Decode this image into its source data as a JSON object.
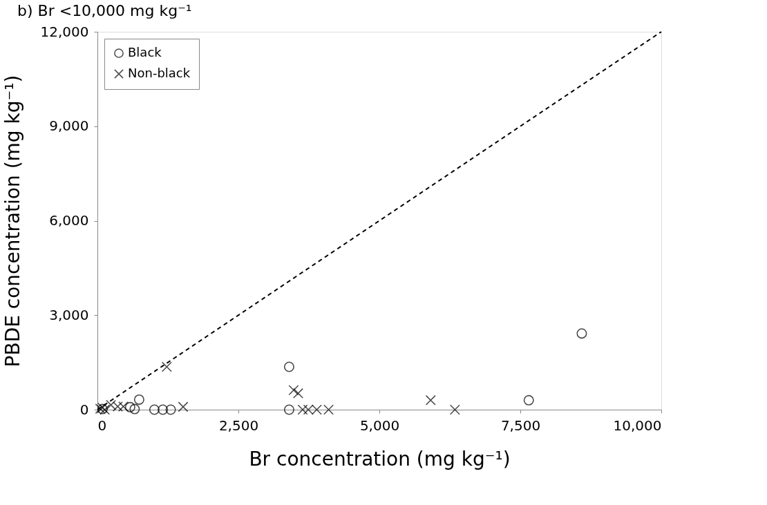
{
  "chart_data": {
    "type": "scatter",
    "title": "b) Br <10,000 mg kg⁻¹",
    "xlabel": "Br concentration (mg kg⁻¹)",
    "ylabel": "PBDE concentration (mg kg⁻¹)",
    "xlim": [
      0,
      10000
    ],
    "ylim": [
      0,
      12000
    ],
    "xticks": [
      0,
      {
        "value": 2500,
        "label": "2,500"
      },
      {
        "value": 5000,
        "label": "5,000"
      },
      {
        "value": 7500,
        "label": "7,500"
      },
      {
        "value": 10000,
        "label": "10,000"
      }
    ],
    "yticks": [
      0,
      {
        "value": 3000,
        "label": "3,000"
      },
      {
        "value": 6000,
        "label": "6,000"
      },
      {
        "value": 9000,
        "label": "9,000"
      },
      {
        "value": 12000,
        "label": "12,000"
      }
    ],
    "grid": false,
    "legend": "top left",
    "series": [
      {
        "name": "Black",
        "color": "#000000",
        "marker": "circle",
        "x": [
          90,
          580,
          660,
          740,
          1010,
          1160,
          1300,
          3400,
          3400,
          7650,
          8590
        ],
        "values": [
          20,
          80,
          20,
          320,
          0,
          0,
          0,
          1360,
          0,
          300,
          2420
        ]
      },
      {
        "name": "Non-black",
        "color": "#000000",
        "marker": "cross",
        "x": [
          50,
          90,
          130,
          240,
          360,
          460,
          1230,
          1520,
          3480,
          3560,
          3640,
          3740,
          3890,
          4100,
          5910,
          6340
        ],
        "values": [
          30,
          60,
          0,
          150,
          100,
          100,
          1360,
          90,
          620,
          520,
          0,
          0,
          0,
          0,
          300,
          0
        ]
      },
      {
        "type": "line",
        "color": "#000000",
        "line_style": "dashed",
        "x": [
          0,
          10000
        ],
        "values": [
          0,
          12000
        ]
      }
    ]
  }
}
